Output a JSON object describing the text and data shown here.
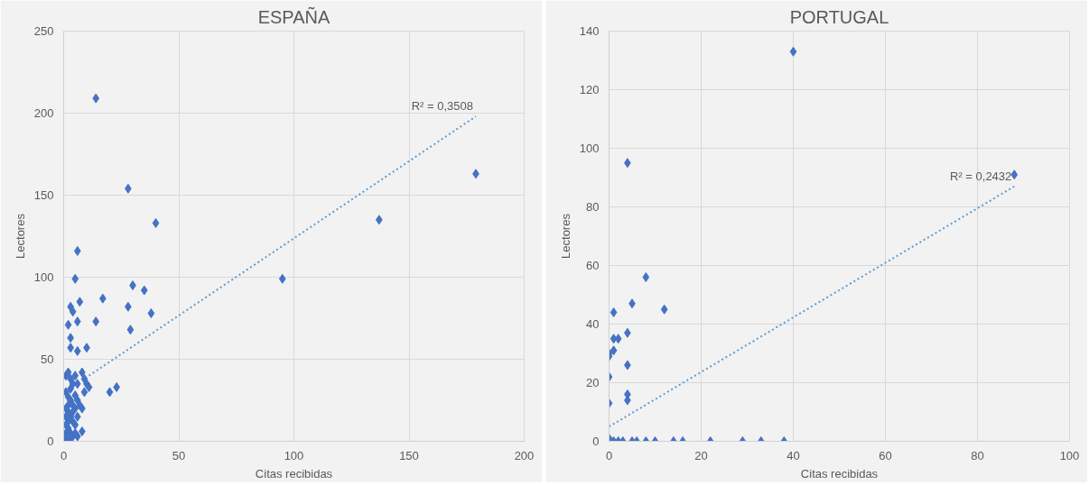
{
  "chart_data": [
    {
      "type": "scatter",
      "title": "ESPAÑA",
      "xlabel": "Citas recibidas",
      "ylabel": "Lectores",
      "xlim": [
        0,
        200
      ],
      "ylim": [
        0,
        250
      ],
      "xticks": [
        0,
        50,
        100,
        150,
        200
      ],
      "yticks": [
        0,
        50,
        100,
        150,
        200,
        250
      ],
      "grid": true,
      "annotations": [
        {
          "text": "R² = 0,3508",
          "x": 179,
          "y": 198
        }
      ],
      "series": [
        {
          "color": "#4472c4",
          "marker": "diamond",
          "x": [
            14,
            28,
            40,
            6,
            5,
            7,
            3,
            4,
            2,
            6,
            14,
            3,
            3,
            6,
            10,
            17,
            30,
            35,
            28,
            38,
            29,
            95,
            137,
            179,
            20,
            23,
            8,
            9,
            10,
            11,
            9,
            8,
            8,
            7,
            6,
            1,
            2,
            3,
            4,
            5,
            1,
            2,
            3,
            4,
            5,
            1,
            2,
            3,
            4,
            5,
            1,
            2,
            3,
            4,
            1,
            2,
            1,
            2,
            3,
            6,
            5,
            6,
            4,
            2,
            1,
            3,
            5,
            6
          ],
          "values": [
            209,
            154,
            133,
            116,
            99,
            85,
            82,
            79,
            71,
            73,
            73,
            63,
            57,
            55,
            57,
            87,
            95,
            92,
            82,
            78,
            68,
            99,
            135,
            163,
            30,
            33,
            42,
            38,
            35,
            33,
            30,
            20,
            6,
            22,
            15,
            40,
            42,
            38,
            35,
            40,
            30,
            27,
            25,
            22,
            28,
            20,
            18,
            15,
            12,
            10,
            10,
            8,
            5,
            3,
            2,
            1,
            5,
            22,
            32,
            35,
            20,
            25,
            18,
            12,
            15,
            2,
            5,
            3
          ]
        },
        {
          "type": "line",
          "line_style": "dotted",
          "color": "#5b9bd5",
          "x": [
            11,
            179
          ],
          "values": [
            40,
            198
          ]
        }
      ]
    },
    {
      "type": "scatter",
      "title": "PORTUGAL",
      "xlabel": "Citas recibidas",
      "ylabel": "Lectores",
      "xlim": [
        0,
        100
      ],
      "ylim": [
        0,
        140
      ],
      "xticks": [
        0,
        20,
        40,
        60,
        80,
        100
      ],
      "yticks": [
        0,
        20,
        40,
        60,
        80,
        100,
        120,
        140
      ],
      "grid": true,
      "annotations": [
        {
          "text": "R² = 0,2432",
          "x": 88,
          "y": 87
        }
      ],
      "series": [
        {
          "color": "#4472c4",
          "marker": "diamond",
          "x": [
            40,
            4,
            88,
            8,
            5,
            12,
            1,
            4,
            1,
            2,
            0,
            1,
            0,
            4,
            0,
            4,
            4,
            0,
            0,
            1,
            2,
            3,
            5,
            6,
            8,
            10,
            14,
            16,
            22,
            29,
            33,
            38
          ],
          "values": [
            133,
            95,
            91,
            56,
            47,
            45,
            44,
            37,
            35,
            35,
            30,
            31,
            29,
            26,
            22,
            16,
            14,
            13,
            1,
            0,
            0,
            0,
            0,
            0,
            0,
            0,
            0,
            0,
            0,
            0,
            0,
            0
          ]
        },
        {
          "type": "line",
          "line_style": "dotted",
          "color": "#5b9bd5",
          "x": [
            0,
            88
          ],
          "values": [
            5,
            87
          ]
        }
      ]
    }
  ]
}
